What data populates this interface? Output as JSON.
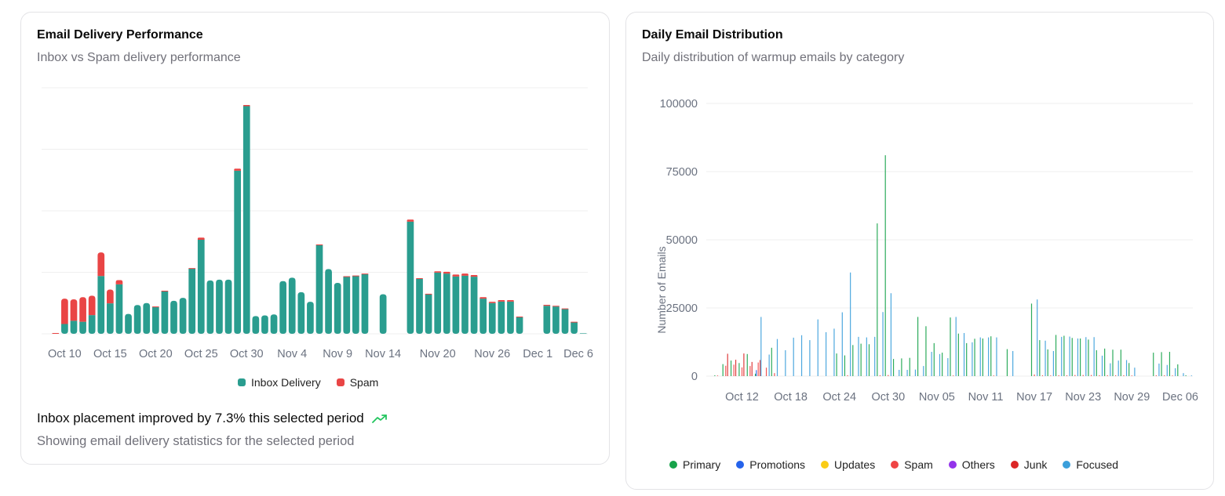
{
  "left_card": {
    "title": "Email Delivery Performance",
    "subtitle": "Inbox vs Spam delivery performance",
    "footer_text": "Inbox placement improved by 7.3% this selected period",
    "footer_icon": "trending-up-icon",
    "footer_subtext": "Showing email delivery statistics for the selected period"
  },
  "right_card": {
    "title": "Daily Email Distribution",
    "subtitle": "Daily distribution of warmup emails by category"
  },
  "chart_data": [
    {
      "type": "bar",
      "stacked": true,
      "grid": true,
      "legend_position": "bottom",
      "ylim": [
        0,
        100000
      ],
      "categories": [
        "Oct 9",
        "Oct 10",
        "Oct 11",
        "Oct 12",
        "Oct 13",
        "Oct 14",
        "Oct 15",
        "Oct 16",
        "Oct 17",
        "Oct 18",
        "Oct 19",
        "Oct 20",
        "Oct 21",
        "Oct 22",
        "Oct 23",
        "Oct 24",
        "Oct 25",
        "Oct 26",
        "Oct 27",
        "Oct 28",
        "Oct 29",
        "Oct 30",
        "Oct 31",
        "Nov 1",
        "Nov 2",
        "Nov 3",
        "Nov 4",
        "Nov 5",
        "Nov 6",
        "Nov 7",
        "Nov 8",
        "Nov 9",
        "Nov 10",
        "Nov 11",
        "Nov 12",
        "Nov 13",
        "Nov 14",
        "Nov 15",
        "Nov 16",
        "Nov 17",
        "Nov 18",
        "Nov 19",
        "Nov 20",
        "Nov 21",
        "Nov 22",
        "Nov 23",
        "Nov 24",
        "Nov 25",
        "Nov 26",
        "Nov 27",
        "Nov 28",
        "Nov 29",
        "Nov 30",
        "Dec 1",
        "Dec 2",
        "Dec 3",
        "Dec 4",
        "Dec 5",
        "Dec 6"
      ],
      "x_tick_labels": [
        "Oct 10",
        "Oct 15",
        "Oct 20",
        "Oct 25",
        "Oct 30",
        "Nov 4",
        "Nov 9",
        "Nov 14",
        "Nov 20",
        "Nov 26",
        "Dec 1",
        "Dec 6"
      ],
      "series": [
        {
          "name": "Inbox Delivery",
          "color": "#2a9d8f",
          "values": [
            0,
            4000,
            5300,
            4900,
            7600,
            23500,
            12400,
            20100,
            8100,
            11700,
            12500,
            10900,
            17300,
            13400,
            14600,
            26500,
            38200,
            21700,
            22000,
            22000,
            66300,
            92500,
            7200,
            7500,
            7900,
            21400,
            22800,
            16900,
            13000,
            36100,
            26300,
            20700,
            23300,
            23600,
            24300,
            0,
            16100,
            0,
            0,
            45600,
            22300,
            16100,
            24900,
            24500,
            23300,
            23600,
            23200,
            14300,
            12500,
            13100,
            13100,
            6700,
            0,
            0,
            11400,
            11100,
            10100,
            4700,
            200
          ]
        },
        {
          "name": "Spam",
          "color": "#e94545",
          "values": [
            300,
            10300,
            8700,
            10000,
            7900,
            9600,
            5600,
            1700,
            0,
            0,
            0,
            200,
            200,
            0,
            0,
            200,
            900,
            0,
            0,
            0,
            800,
            500,
            0,
            0,
            0,
            0,
            0,
            0,
            0,
            200,
            0,
            0,
            100,
            100,
            200,
            0,
            0,
            0,
            0,
            800,
            300,
            200,
            500,
            700,
            800,
            900,
            700,
            600,
            500,
            600,
            600,
            300,
            0,
            0,
            400,
            300,
            200,
            200,
            0
          ]
        }
      ]
    },
    {
      "type": "bar",
      "stacked": false,
      "grid": true,
      "legend_position": "bottom",
      "ylabel": "Number of Emails",
      "ylim": [
        0,
        100000
      ],
      "y_ticks": [
        "0",
        "25000",
        "50000",
        "75000",
        "100000"
      ],
      "categories": [
        "Oct 09",
        "Oct 10",
        "Oct 11",
        "Oct 12",
        "Oct 13",
        "Oct 14",
        "Oct 15",
        "Oct 16",
        "Oct 17",
        "Oct 18",
        "Oct 19",
        "Oct 20",
        "Oct 21",
        "Oct 22",
        "Oct 23",
        "Oct 24",
        "Oct 25",
        "Oct 26",
        "Oct 27",
        "Oct 28",
        "Oct 29",
        "Oct 30",
        "Oct 31",
        "Nov 01",
        "Nov 02",
        "Nov 03",
        "Nov 04",
        "Nov 05",
        "Nov 06",
        "Nov 07",
        "Nov 08",
        "Nov 09",
        "Nov 10",
        "Nov 11",
        "Nov 12",
        "Nov 13",
        "Nov 14",
        "Nov 15",
        "Nov 16",
        "Nov 17",
        "Nov 18",
        "Nov 19",
        "Nov 20",
        "Nov 21",
        "Nov 22",
        "Nov 23",
        "Nov 24",
        "Nov 25",
        "Nov 26",
        "Nov 27",
        "Nov 28",
        "Nov 29",
        "Nov 30",
        "Dec 01",
        "Dec 02",
        "Dec 03",
        "Dec 04",
        "Dec 05",
        "Dec 06"
      ],
      "x_tick_labels": [
        "Oct 12",
        "Oct 18",
        "Oct 24",
        "Oct 30",
        "Nov 05",
        "Nov 11",
        "Nov 17",
        "Nov 23",
        "Nov 29",
        "Dec 06"
      ],
      "series": [
        {
          "name": "Primary",
          "color": "#16a34a",
          "values": [
            300,
            4400,
            5700,
            4800,
            8100,
            900,
            0,
            10400,
            0,
            0,
            0,
            0,
            0,
            0,
            0,
            8300,
            7600,
            11400,
            11900,
            11700,
            56000,
            81000,
            6300,
            6500,
            6700,
            21700,
            18300,
            12100,
            8600,
            21500,
            15600,
            12100,
            13700,
            13800,
            14600,
            0,
            9900,
            0,
            0,
            26600,
            13200,
            9800,
            15100,
            14800,
            14000,
            13800,
            13400,
            9500,
            10100,
            9700,
            9700,
            4800,
            0,
            0,
            8600,
            8800,
            8900,
            4300,
            300
          ]
        },
        {
          "name": "Promotions",
          "color": "#2563eb",
          "values": [
            0,
            0,
            0,
            0,
            0,
            2200,
            0,
            0,
            0,
            0,
            0,
            0,
            0,
            0,
            0,
            0,
            0,
            0,
            0,
            0,
            0,
            0,
            0,
            0,
            0,
            0,
            0,
            0,
            0,
            0,
            0,
            0,
            0,
            0,
            0,
            0,
            0,
            0,
            0,
            0,
            0,
            0,
            0,
            0,
            0,
            0,
            0,
            0,
            0,
            0,
            0,
            0,
            0,
            0,
            0,
            0,
            0,
            0,
            0
          ]
        },
        {
          "name": "Updates",
          "color": "#facc15",
          "values": [
            0,
            0,
            0,
            0,
            0,
            0,
            0,
            0,
            0,
            0,
            0,
            0,
            0,
            0,
            0,
            0,
            0,
            0,
            0,
            0,
            0,
            0,
            0,
            0,
            0,
            0,
            0,
            0,
            0,
            0,
            0,
            0,
            0,
            0,
            0,
            0,
            0,
            0,
            0,
            0,
            0,
            0,
            0,
            0,
            0,
            0,
            0,
            0,
            0,
            0,
            0,
            0,
            0,
            0,
            0,
            0,
            0,
            0,
            0
          ]
        },
        {
          "name": "Spam",
          "color": "#ef4444",
          "values": [
            200,
            3800,
            4200,
            3200,
            3700,
            5000,
            3100,
            1100,
            0,
            0,
            0,
            0,
            0,
            0,
            0,
            0,
            300,
            0,
            0,
            0,
            300,
            400,
            0,
            0,
            0,
            0,
            0,
            0,
            0,
            200,
            0,
            0,
            0,
            0,
            200,
            0,
            0,
            0,
            0,
            600,
            300,
            200,
            300,
            300,
            400,
            400,
            400,
            300,
            300,
            300,
            300,
            200,
            0,
            0,
            300,
            300,
            200,
            0,
            0
          ]
        },
        {
          "name": "Others",
          "color": "#9333ea",
          "values": [
            0,
            0,
            0,
            0,
            0,
            0,
            0,
            0,
            0,
            0,
            0,
            0,
            0,
            0,
            0,
            0,
            0,
            0,
            0,
            0,
            0,
            0,
            0,
            0,
            0,
            0,
            0,
            0,
            0,
            0,
            0,
            0,
            0,
            0,
            0,
            0,
            0,
            0,
            0,
            0,
            0,
            0,
            0,
            0,
            0,
            0,
            0,
            0,
            0,
            0,
            0,
            0,
            0,
            0,
            0,
            0,
            0,
            0,
            0
          ]
        },
        {
          "name": "Junk",
          "color": "#dc2626",
          "values": [
            0,
            8200,
            6000,
            8300,
            5200,
            5900,
            0,
            0,
            0,
            0,
            0,
            0,
            0,
            0,
            0,
            0,
            0,
            0,
            0,
            0,
            0,
            0,
            0,
            0,
            0,
            0,
            0,
            0,
            0,
            0,
            0,
            0,
            0,
            0,
            0,
            0,
            0,
            0,
            0,
            0,
            0,
            0,
            0,
            0,
            0,
            0,
            0,
            0,
            0,
            0,
            0,
            0,
            0,
            0,
            0,
            0,
            0,
            0,
            0
          ]
        },
        {
          "name": "Focused",
          "color": "#3b9fdb",
          "values": [
            0,
            0,
            0,
            0,
            0,
            21700,
            7900,
            13600,
            9500,
            14100,
            15000,
            13200,
            20800,
            16100,
            17400,
            23400,
            38000,
            14400,
            14200,
            14400,
            23500,
            30400,
            2300,
            2300,
            2400,
            3700,
            8900,
            8100,
            6600,
            21700,
            15800,
            12400,
            14200,
            14200,
            14200,
            0,
            9200,
            0,
            0,
            28100,
            13000,
            9200,
            14400,
            14500,
            13800,
            14300,
            14300,
            7500,
            4700,
            5700,
            5900,
            3100,
            0,
            0,
            4600,
            4100,
            2900,
            1100,
            100
          ]
        }
      ]
    }
  ]
}
